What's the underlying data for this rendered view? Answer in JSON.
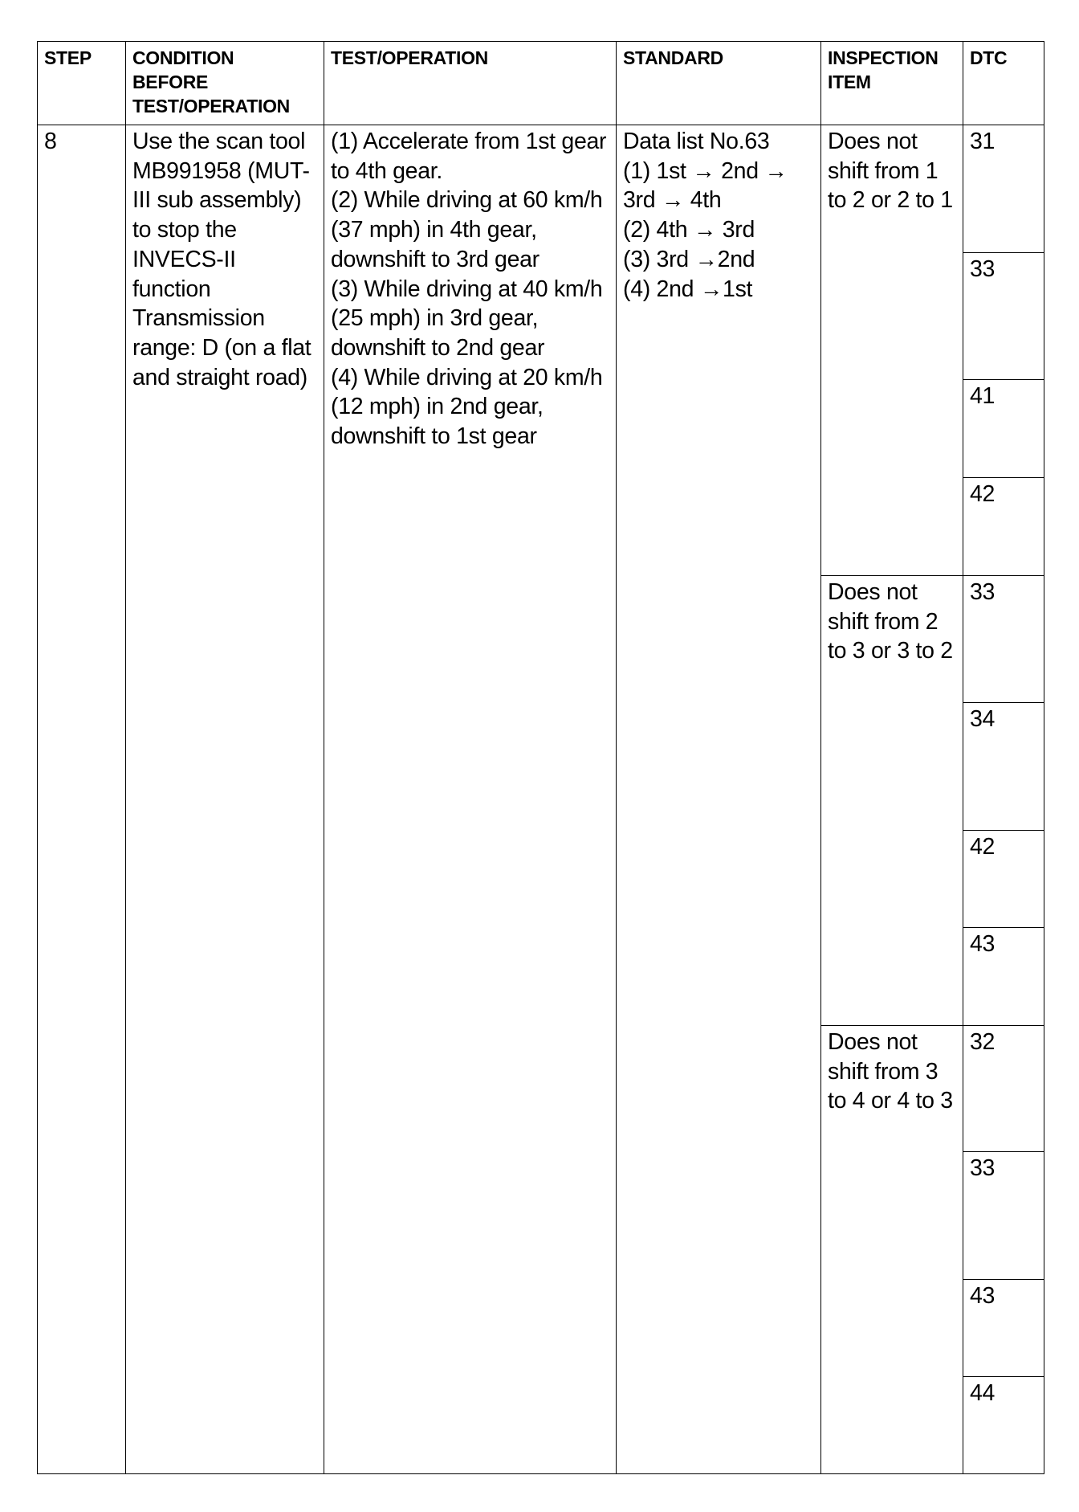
{
  "headers": {
    "step": "STEP",
    "condition": "CONDITION BEFORE TEST/OPERATION",
    "test": "TEST/OPERATION",
    "standard": "STANDARD",
    "inspection": "INSPECTION ITEM",
    "dtc": "DTC"
  },
  "row": {
    "step": "8",
    "condition": "Use the scan tool MB991958 (MUT-III sub assembly) to stop the INVECS-II function Transmission range: D (on a flat and straight road)",
    "test": "(1) Accelerate from 1st gear to 4th gear.\n(2) While driving at 60 km/h (37 mph) in 4th gear, downshift to 3rd gear\n(3) While driving at 40 km/h (25 mph) in 3rd gear, downshift to 2nd gear\n(4) While driving at 20 km/h (12 mph) in 2nd gear, downshift to 1st gear",
    "standard": "Data list No.63\n(1) 1st → 2nd → 3rd → 4th\n(2) 4th → 3rd\n(3) 3rd →2nd\n(4) 2nd →1st",
    "inspection_groups": [
      {
        "item": "Does not shift from 1 to 2 or 2 to 1",
        "dtcs": [
          "31",
          "33",
          "41",
          "42"
        ]
      },
      {
        "item": "Does not shift from 2 to 3 or 3 to 2",
        "dtcs": [
          "33",
          "34",
          "42",
          "43"
        ]
      },
      {
        "item": "Does not shift from 3 to 4 or 4 to 3",
        "dtcs": [
          "32",
          "33",
          "43",
          "44"
        ]
      }
    ]
  }
}
